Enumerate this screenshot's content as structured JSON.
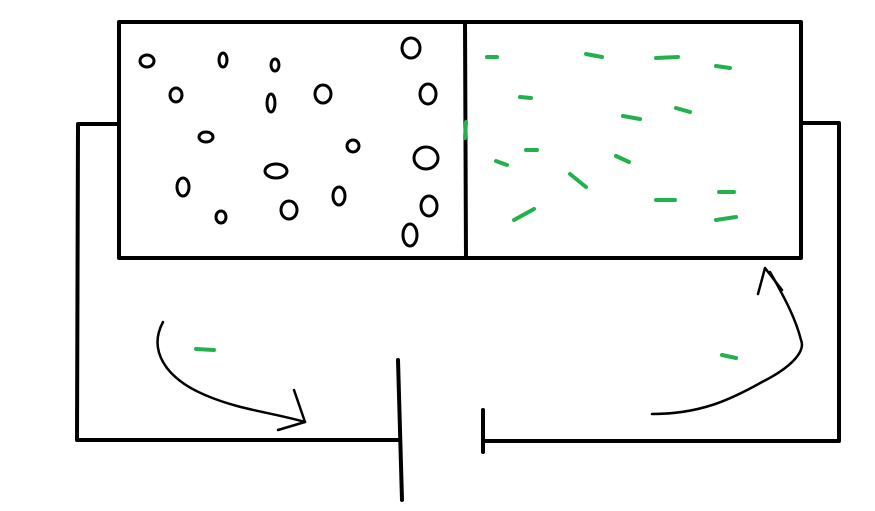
{
  "diagram": {
    "colors": {
      "ink": "#000000",
      "charge": "#22b14c",
      "background": "#ffffff"
    },
    "parts": [
      "semiconductor-block",
      "junction-divider",
      "holes-region",
      "electrons-region",
      "battery",
      "circuit-wires",
      "flow-arrows"
    ]
  }
}
